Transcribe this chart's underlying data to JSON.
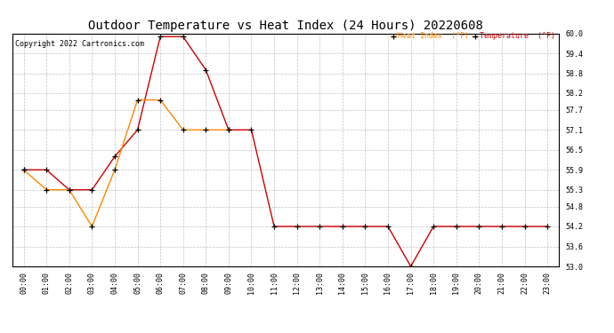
{
  "title": "Outdoor Temperature vs Heat Index (24 Hours) 20220608",
  "copyright_text": "Copyright 2022 Cartronics.com",
  "legend_heat_index": "Heat Index  (°F)",
  "legend_temperature": "Temperature  (°F)",
  "x_labels": [
    "00:00",
    "01:00",
    "02:00",
    "03:00",
    "04:00",
    "05:00",
    "06:00",
    "07:00",
    "08:00",
    "09:00",
    "10:00",
    "11:00",
    "12:00",
    "13:00",
    "14:00",
    "15:00",
    "16:00",
    "17:00",
    "18:00",
    "19:00",
    "20:00",
    "21:00",
    "22:00",
    "23:00"
  ],
  "temperature_x": [
    0,
    1,
    2,
    3,
    4,
    5,
    6,
    7,
    8,
    9,
    10,
    11,
    12,
    13,
    14,
    15,
    16,
    17,
    18,
    19,
    20,
    21,
    22,
    23
  ],
  "temperature_y": [
    55.9,
    55.9,
    55.3,
    55.3,
    56.3,
    57.1,
    59.9,
    59.9,
    58.9,
    57.1,
    57.1,
    54.2,
    54.2,
    54.2,
    54.2,
    54.2,
    54.2,
    53.0,
    54.2,
    54.2,
    54.2,
    54.2,
    54.2,
    54.2
  ],
  "heat_index_x": [
    0,
    1,
    2,
    3,
    4,
    5,
    6,
    7,
    8,
    9
  ],
  "heat_index_y": [
    55.9,
    55.3,
    55.3,
    54.2,
    55.9,
    58.0,
    58.0,
    57.1,
    57.1,
    57.1
  ],
  "temperature_color": "#cc0000",
  "heat_index_color": "#ff8800",
  "marker_color": "#000000",
  "ylim": [
    53.0,
    60.0
  ],
  "yticks": [
    53.0,
    53.6,
    54.2,
    54.8,
    55.3,
    55.9,
    56.5,
    57.1,
    57.7,
    58.2,
    58.8,
    59.4,
    60.0
  ],
  "background_color": "#ffffff",
  "grid_color": "#999999",
  "title_fontsize": 10,
  "label_fontsize": 6,
  "copyright_fontsize": 6
}
